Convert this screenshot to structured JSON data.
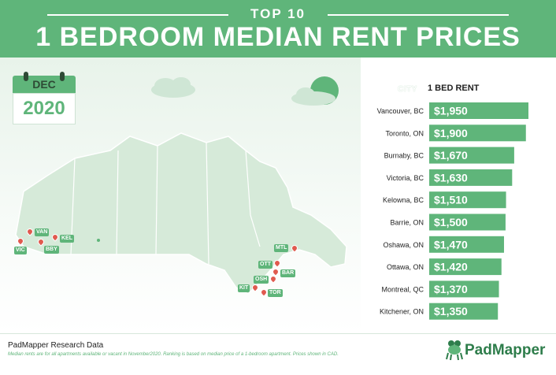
{
  "header": {
    "kicker": "TOP 10",
    "title": "1 BEDROOM MEDIAN RENT PRICES"
  },
  "calendar": {
    "month": "DEC",
    "year": "2020"
  },
  "table_header": {
    "city": "CITY",
    "rent": "1 BED RENT"
  },
  "map_labels": [
    "VAN",
    "KEL",
    "VIC",
    "BBY",
    "MTL",
    "OTT",
    "BAR",
    "OSH",
    "KIT",
    "TOR"
  ],
  "chart_data": {
    "type": "bar",
    "orientation": "horizontal",
    "categories": [
      "Vancouver, BC",
      "Toronto, ON",
      "Burnaby, BC",
      "Victoria, BC",
      "Kelowna, BC",
      "Barrie, ON",
      "Oshawa, ON",
      "Ottawa, ON",
      "Montreal, QC",
      "Kitchener, ON"
    ],
    "values": [
      1950,
      1900,
      1670,
      1630,
      1510,
      1500,
      1470,
      1420,
      1370,
      1350
    ],
    "value_labels": [
      "$1,950",
      "$1,900",
      "$1,670",
      "$1,630",
      "$1,510",
      "$1,500",
      "$1,470",
      "$1,420",
      "$1,370",
      "$1,350"
    ],
    "xlabel": "",
    "ylabel": "",
    "legend": "none",
    "bar_color": "#5fb57a"
  },
  "footer": {
    "source": "PadMapper Research Data",
    "note": "Median rents are for all apartments available or vacant in November2020. Ranking is based on median price of a 1-bedroom apartment. Prices shown in CAD.",
    "logo_text": "PadMapper"
  },
  "colors": {
    "brand_green": "#5fb57a",
    "dark_green": "#2e7d4b",
    "pin_red": "#e05a4f"
  },
  "icons": [
    "calendar-icon",
    "cloud-icon",
    "sun-icon",
    "map-pin-icon",
    "frog-logo-icon"
  ]
}
